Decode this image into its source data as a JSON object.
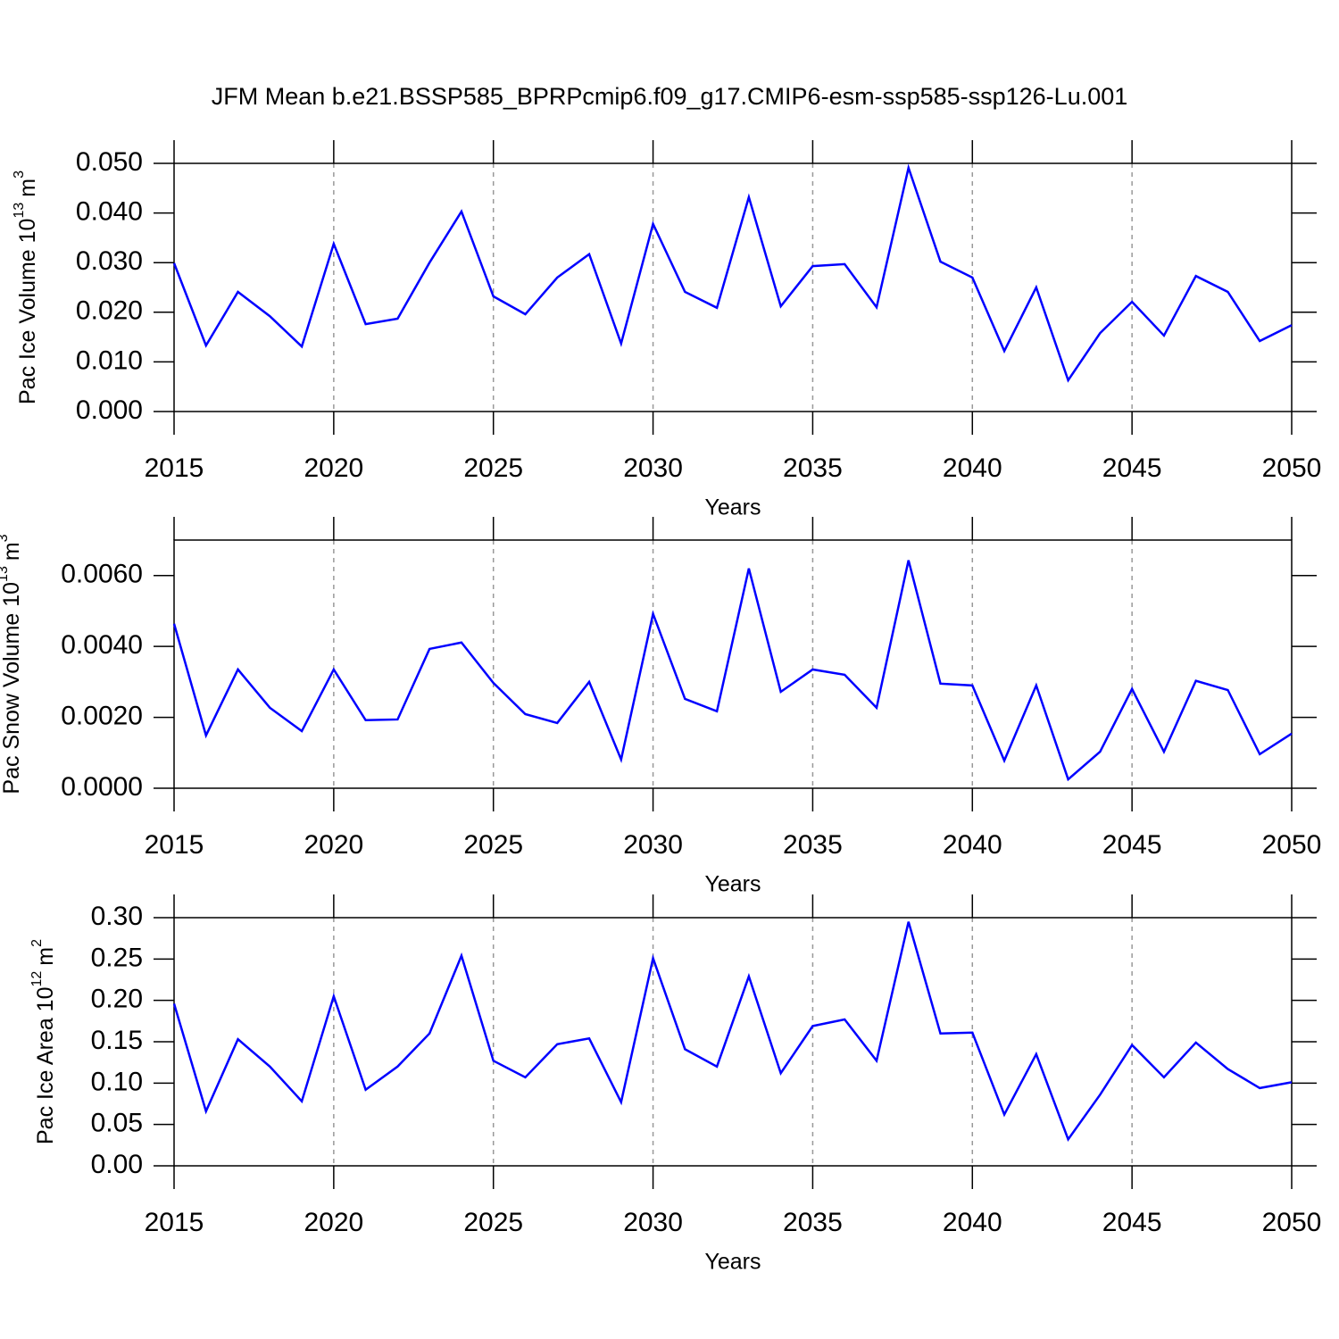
{
  "chart_data": [
    {
      "type": "line",
      "title": "JFM Mean b.e21.BSSP585_BPRPcmip6.f09_g17.CMIP6-esm-ssp585-ssp126-Lu.001",
      "xlabel": "Years",
      "ylabel": {
        "main": "Pac Ice Volume 10",
        "exp": "13",
        "unit": "m",
        "unit_exp": "3"
      },
      "x": [
        2015,
        2016,
        2017,
        2018,
        2019,
        2020,
        2021,
        2022,
        2023,
        2024,
        2025,
        2026,
        2027,
        2028,
        2029,
        2030,
        2031,
        2032,
        2033,
        2034,
        2035,
        2036,
        2037,
        2038,
        2039,
        2040,
        2041,
        2042,
        2043,
        2044,
        2045,
        2046,
        2047,
        2048,
        2049,
        2050
      ],
      "series": [
        {
          "color": "#0000ff",
          "values": [
            0.0299,
            0.0133,
            0.0241,
            0.0192,
            0.0131,
            0.0338,
            0.0176,
            0.0187,
            0.03,
            0.0403,
            0.0232,
            0.0196,
            0.027,
            0.0317,
            0.0137,
            0.0378,
            0.0241,
            0.0209,
            0.0432,
            0.0212,
            0.0293,
            0.0297,
            0.021,
            0.0491,
            0.0302,
            0.027,
            0.0122,
            0.025,
            0.0063,
            0.0158,
            0.0221,
            0.0153,
            0.0273,
            0.0241,
            0.0142,
            0.0174
          ]
        }
      ],
      "xlim": [
        2015,
        2050
      ],
      "xticks": [
        2015,
        2020,
        2025,
        2030,
        2035,
        2040,
        2045,
        2050
      ],
      "ylim": [
        0,
        0.05
      ],
      "yticks": [
        {
          "value": 0,
          "label": "0.000"
        },
        {
          "value": 0.01,
          "label": "0.010"
        },
        {
          "value": 0.02,
          "label": "0.020"
        },
        {
          "value": 0.03,
          "label": "0.030"
        },
        {
          "value": 0.04,
          "label": "0.040"
        },
        {
          "value": 0.05,
          "label": "0.050"
        }
      ],
      "grid": "x"
    },
    {
      "type": "line",
      "xlabel": "Years",
      "ylabel": {
        "main": "Pac Snow Volume 10",
        "exp": "13",
        "unit": "m",
        "unit_exp": "3"
      },
      "x": [
        2015,
        2016,
        2017,
        2018,
        2019,
        2020,
        2021,
        2022,
        2023,
        2024,
        2025,
        2026,
        2027,
        2028,
        2029,
        2030,
        2031,
        2032,
        2033,
        2034,
        2035,
        2036,
        2037,
        2038,
        2039,
        2040,
        2041,
        2042,
        2043,
        2044,
        2045,
        2046,
        2047,
        2048,
        2049,
        2050
      ],
      "series": [
        {
          "color": "#0000ff",
          "values": [
            0.00464,
            0.00149,
            0.00335,
            0.00227,
            0.00161,
            0.00335,
            0.00192,
            0.00194,
            0.00393,
            0.00411,
            0.00297,
            0.00209,
            0.00184,
            0.003,
            0.00081,
            0.00492,
            0.00252,
            0.00217,
            0.0062,
            0.00272,
            0.00335,
            0.0032,
            0.00227,
            0.00643,
            0.00295,
            0.0029,
            0.00078,
            0.0029,
            0.00025,
            0.00103,
            0.0028,
            0.00103,
            0.00303,
            0.00277,
            0.00096,
            0.00154
          ]
        }
      ],
      "xlim": [
        2015,
        2050
      ],
      "xticks": [
        2015,
        2020,
        2025,
        2030,
        2035,
        2040,
        2045,
        2050
      ],
      "ylim": [
        0,
        0.007
      ],
      "yticks": [
        {
          "value": 0,
          "label": "0.0000"
        },
        {
          "value": 0.002,
          "label": "0.0020"
        },
        {
          "value": 0.004,
          "label": "0.0040"
        },
        {
          "value": 0.006,
          "label": "0.0060"
        }
      ],
      "grid": "x"
    },
    {
      "type": "line",
      "xlabel": "Years",
      "ylabel": {
        "main": "Pac Ice Area 10",
        "exp": "12",
        "unit": "m",
        "unit_exp": "2"
      },
      "x": [
        2015,
        2016,
        2017,
        2018,
        2019,
        2020,
        2021,
        2022,
        2023,
        2024,
        2025,
        2026,
        2027,
        2028,
        2029,
        2030,
        2031,
        2032,
        2033,
        2034,
        2035,
        2036,
        2037,
        2038,
        2039,
        2040,
        2041,
        2042,
        2043,
        2044,
        2045,
        2046,
        2047,
        2048,
        2049,
        2050
      ],
      "series": [
        {
          "color": "#0000ff",
          "values": [
            0.196,
            0.066,
            0.153,
            0.12,
            0.078,
            0.205,
            0.092,
            0.12,
            0.16,
            0.254,
            0.127,
            0.107,
            0.147,
            0.154,
            0.077,
            0.251,
            0.141,
            0.12,
            0.229,
            0.112,
            0.169,
            0.177,
            0.127,
            0.295,
            0.16,
            0.161,
            0.062,
            0.135,
            0.032,
            0.086,
            0.146,
            0.107,
            0.149,
            0.117,
            0.094,
            0.101
          ]
        }
      ],
      "xlim": [
        2015,
        2050
      ],
      "xticks": [
        2015,
        2020,
        2025,
        2030,
        2035,
        2040,
        2045,
        2050
      ],
      "ylim": [
        0,
        0.3
      ],
      "yticks": [
        {
          "value": 0,
          "label": "0.00"
        },
        0.05,
        {
          "value": 0.1,
          "label": "0.10"
        },
        0.15,
        {
          "value": 0.2,
          "label": "0.20"
        },
        0.25,
        {
          "value": 0.3,
          "label": "0.30"
        }
      ],
      "grid": "x"
    }
  ]
}
